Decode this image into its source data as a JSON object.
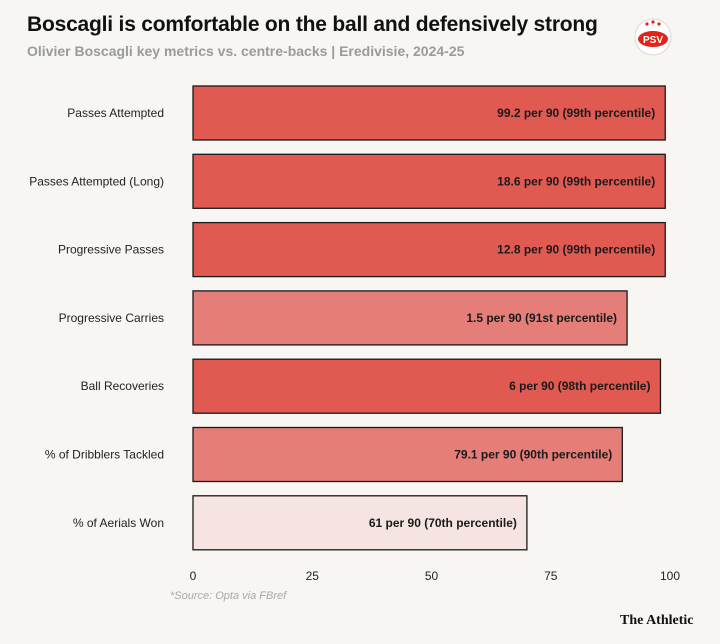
{
  "header": {
    "title": "Boscagli is comfortable on the ball and defensively strong",
    "subtitle": "Olivier Boscagli key metrics vs. centre-backs | Eredivisie, 2024-25"
  },
  "logo": {
    "text": "PSV",
    "icon": "psv-club-crest"
  },
  "chart_data": {
    "type": "bar",
    "orientation": "horizontal",
    "title": "Boscagli is comfortable on the ball and defensively strong",
    "subtitle": "Olivier Boscagli key metrics vs. centre-backs | Eredivisie, 2024-25",
    "categories": [
      "Passes Attempted",
      "Passes Attempted (Long)",
      "Progressive Passes",
      "Progressive Carries",
      "Ball Recoveries",
      "% of Dribblers Tackled",
      "% of Aerials Won"
    ],
    "values": [
      99,
      99,
      99,
      91,
      98,
      90,
      70
    ],
    "data_labels": [
      "99.2 per 90 (99th percentile)",
      "18.6 per 90 (99th percentile)",
      "12.8 per 90 (99th percentile)",
      "1.5 per 90 (91st percentile)",
      "6 per 90 (98th percentile)",
      "79.1 per 90 (90th percentile)",
      "61 per 90 (70th percentile)"
    ],
    "xlim": [
      0,
      100
    ],
    "xticks": [
      0,
      25,
      50,
      75,
      100
    ],
    "xlabel": "",
    "ylabel": "",
    "grid": false,
    "colors": {
      "high": "#e05a52",
      "mid": "#e57e78",
      "low": "#f5e4e1",
      "outline": "#1a1a1a"
    }
  },
  "footer": {
    "source": "*Source: Opta via FBref",
    "brand": "The Athletic"
  }
}
